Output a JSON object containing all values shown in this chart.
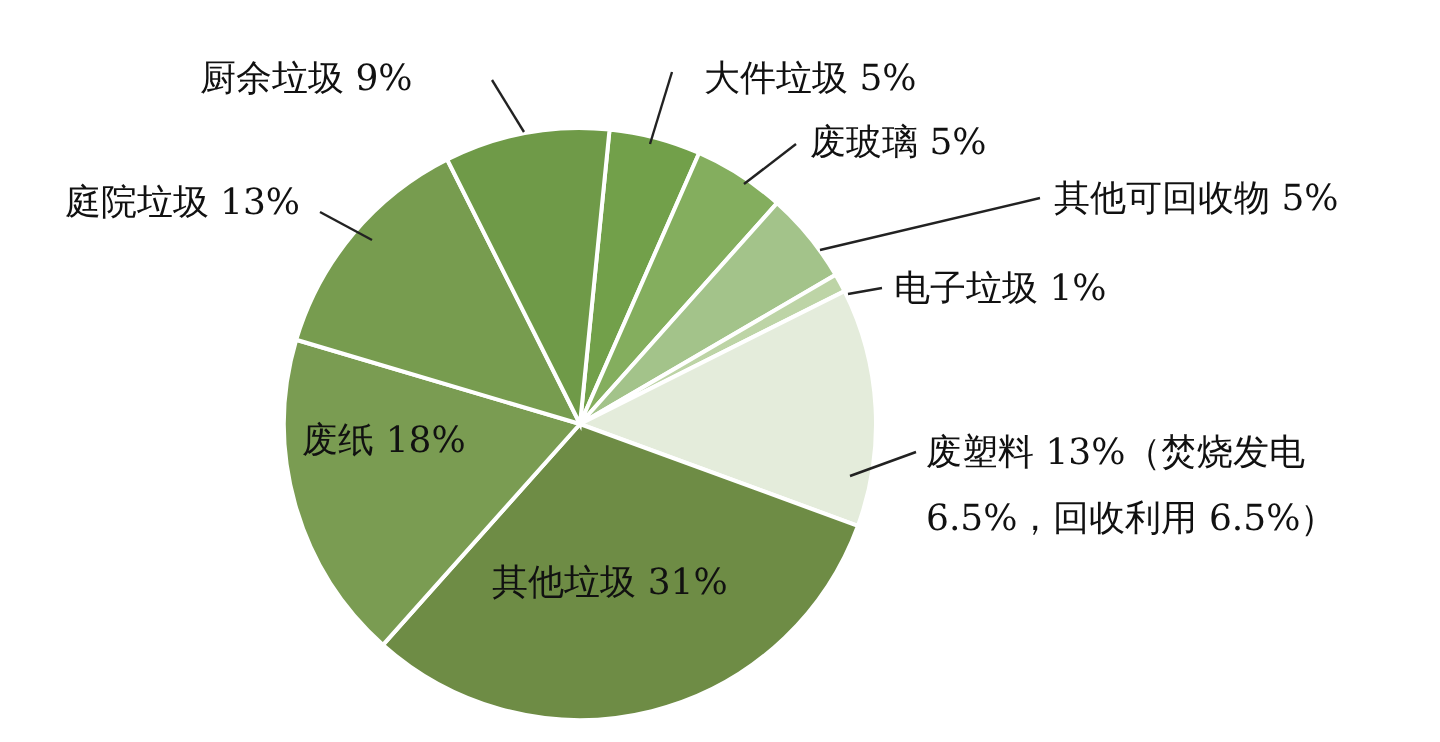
{
  "chart_data": {
    "type": "pie",
    "categories": [
      "大件垃圾",
      "废玻璃",
      "其他可回收物",
      "电子垃圾",
      "废塑料",
      "其他垃圾",
      "废纸",
      "庭院垃圾",
      "厨余垃圾"
    ],
    "values": [
      5,
      5,
      5,
      1,
      13,
      31,
      18,
      13,
      9
    ],
    "value_labels": [
      "5%",
      "5%",
      "5%",
      "1%",
      "13%（焚烧发电 6.5%，回收利用 6.5%）",
      "31%",
      "18%",
      "13%",
      "9%"
    ],
    "colors": [
      "#72a04a",
      "#84ae5e",
      "#a3c38a",
      "#bdd4a6",
      "#e4ecdb",
      "#6e8c45",
      "#7a9c52",
      "#779c4f",
      "#6f9a48"
    ]
  }
}
